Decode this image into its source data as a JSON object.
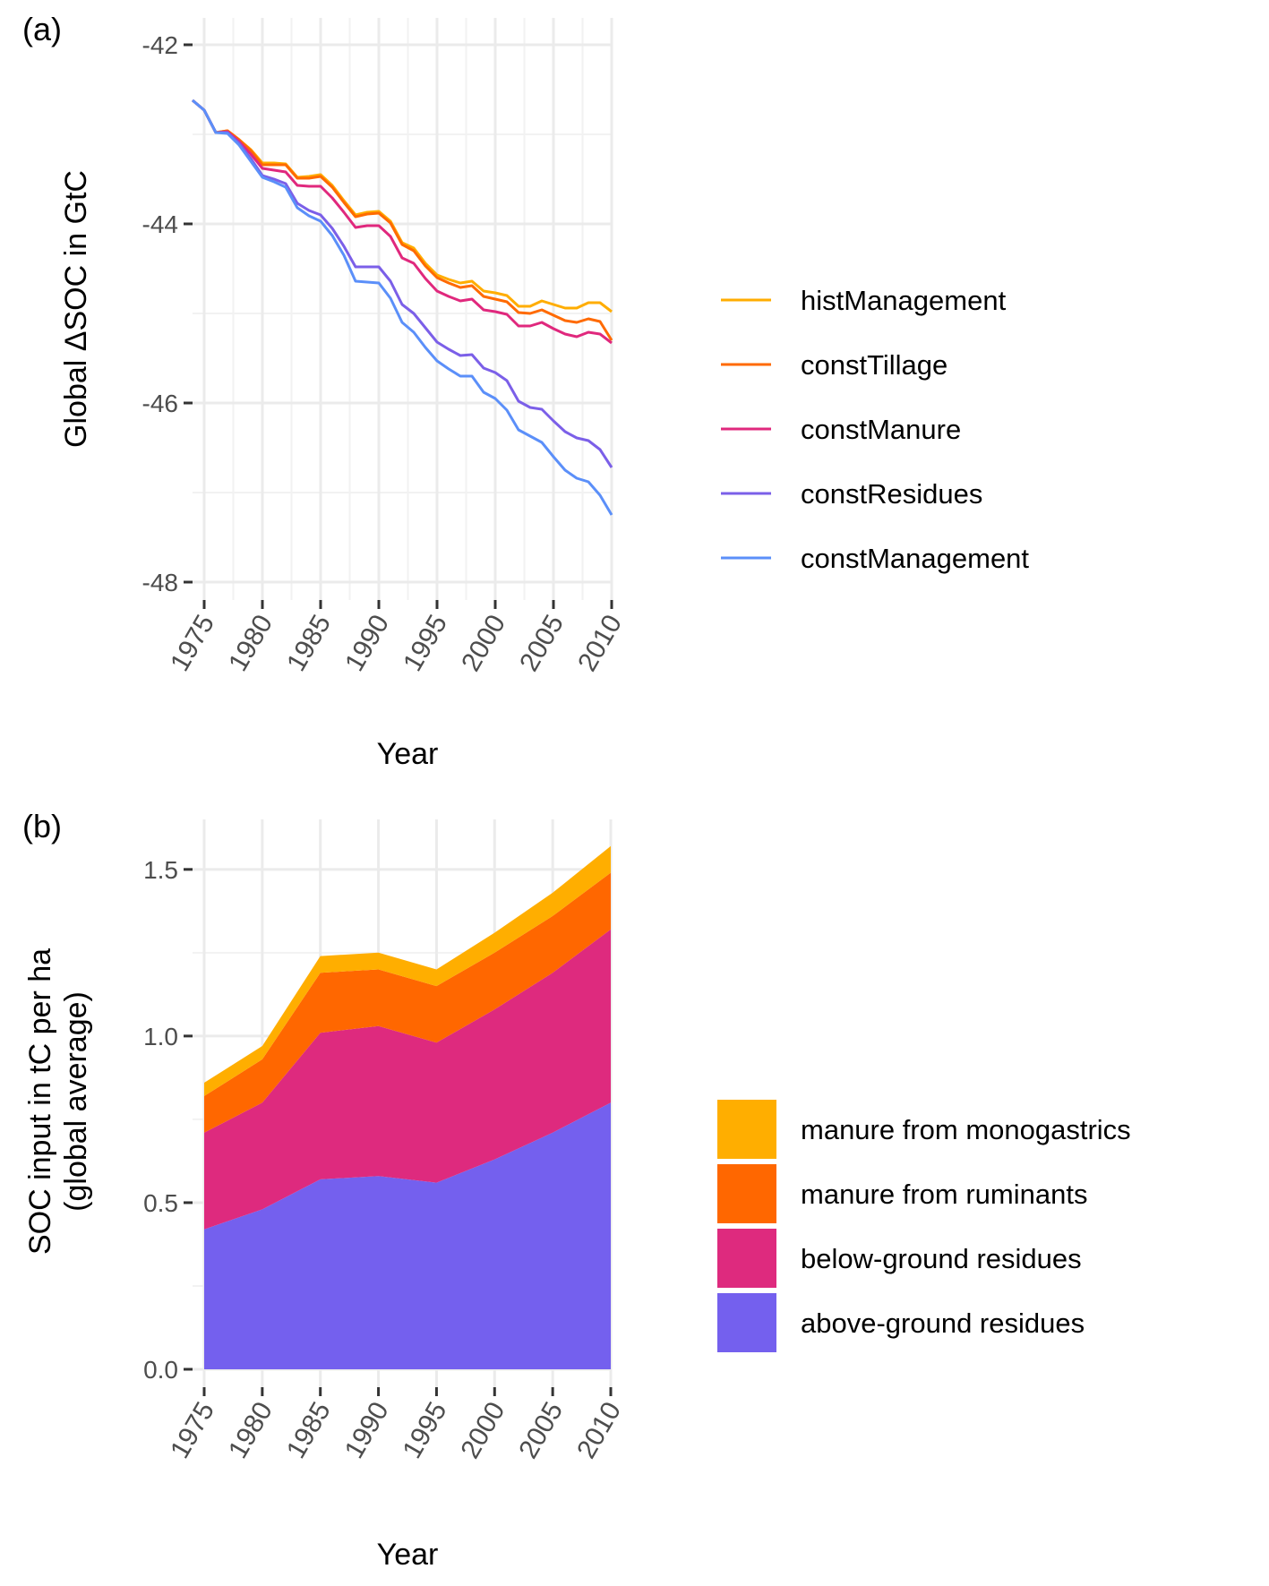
{
  "chart_data": [
    {
      "panel_label": "(a)",
      "type": "line",
      "xlabel": "Year",
      "ylabel": "Global ΔSOC in GtC",
      "xlim": [
        1974,
        2010
      ],
      "ylim": [
        -48.2,
        -41.7
      ],
      "x_ticks": [
        1975,
        1980,
        1985,
        1990,
        1995,
        2000,
        2005,
        2010
      ],
      "y_ticks": [
        -42,
        -44,
        -46,
        -48
      ],
      "grid": true,
      "legend_position": "right",
      "x": [
        1974,
        1975,
        1976,
        1977,
        1978,
        1979,
        1980,
        1981,
        1982,
        1983,
        1984,
        1985,
        1986,
        1987,
        1988,
        1989,
        1990,
        1991,
        1992,
        1993,
        1994,
        1995,
        1996,
        1997,
        1998,
        1999,
        2000,
        2001,
        2002,
        2003,
        2004,
        2005,
        2006,
        2007,
        2008,
        2009,
        2010
      ],
      "series": [
        {
          "name": "histManagement",
          "color": "#FFAD00",
          "values": [
            -42.62,
            -42.73,
            -42.98,
            -42.96,
            -43.06,
            -43.17,
            -43.32,
            -43.32,
            -43.33,
            -43.48,
            -43.47,
            -43.45,
            -43.57,
            -43.74,
            -43.9,
            -43.87,
            -43.86,
            -43.97,
            -44.21,
            -44.27,
            -44.44,
            -44.57,
            -44.62,
            -44.66,
            -44.64,
            -44.75,
            -44.77,
            -44.8,
            -44.92,
            -44.92,
            -44.86,
            -44.9,
            -44.94,
            -44.94,
            -44.88,
            -44.88,
            -44.98
          ]
        },
        {
          "name": "constTillage",
          "color": "#FF6A00",
          "values": [
            -42.62,
            -42.73,
            -42.98,
            -42.96,
            -43.06,
            -43.18,
            -43.34,
            -43.34,
            -43.34,
            -43.49,
            -43.49,
            -43.47,
            -43.59,
            -43.76,
            -43.92,
            -43.89,
            -43.88,
            -43.99,
            -44.23,
            -44.3,
            -44.47,
            -44.6,
            -44.66,
            -44.71,
            -44.69,
            -44.81,
            -44.84,
            -44.87,
            -44.99,
            -45.0,
            -44.96,
            -45.02,
            -45.08,
            -45.1,
            -45.06,
            -45.09,
            -45.3
          ]
        },
        {
          "name": "constManure",
          "color": "#E0287D",
          "values": [
            -42.62,
            -42.73,
            -42.98,
            -42.97,
            -43.08,
            -43.22,
            -43.38,
            -43.4,
            -43.42,
            -43.57,
            -43.58,
            -43.58,
            -43.71,
            -43.87,
            -44.04,
            -44.02,
            -44.02,
            -44.14,
            -44.38,
            -44.44,
            -44.61,
            -44.75,
            -44.81,
            -44.86,
            -44.84,
            -44.96,
            -44.98,
            -45.01,
            -45.14,
            -45.14,
            -45.1,
            -45.17,
            -45.23,
            -45.26,
            -45.21,
            -45.23,
            -45.33
          ]
        },
        {
          "name": "constResidues",
          "color": "#7B5FE8",
          "values": [
            -42.62,
            -42.73,
            -42.98,
            -42.98,
            -43.1,
            -43.27,
            -43.46,
            -43.5,
            -43.55,
            -43.77,
            -43.85,
            -43.9,
            -44.05,
            -44.25,
            -44.48,
            -44.48,
            -44.48,
            -44.64,
            -44.9,
            -45.0,
            -45.16,
            -45.32,
            -45.4,
            -45.47,
            -45.46,
            -45.61,
            -45.66,
            -45.75,
            -45.98,
            -46.05,
            -46.07,
            -46.2,
            -46.32,
            -46.39,
            -46.42,
            -46.52,
            -46.72
          ]
        },
        {
          "name": "constManagement",
          "color": "#5B8FF9",
          "values": [
            -42.62,
            -42.73,
            -42.98,
            -42.99,
            -43.12,
            -43.3,
            -43.48,
            -43.53,
            -43.59,
            -43.82,
            -43.91,
            -43.97,
            -44.13,
            -44.35,
            -44.64,
            -44.65,
            -44.66,
            -44.83,
            -45.1,
            -45.21,
            -45.38,
            -45.53,
            -45.62,
            -45.7,
            -45.7,
            -45.88,
            -45.95,
            -46.08,
            -46.3,
            -46.37,
            -46.44,
            -46.6,
            -46.75,
            -46.84,
            -46.88,
            -47.03,
            -47.25
          ]
        }
      ]
    },
    {
      "panel_label": "(b)",
      "type": "area",
      "stacked": true,
      "xlabel": "Year",
      "ylabel": [
        "SOC input in tC per ha",
        "(global average)"
      ],
      "xlim": [
        1975,
        2010
      ],
      "ylim": [
        0,
        1.65
      ],
      "x_ticks": [
        1975,
        1980,
        1985,
        1990,
        1995,
        2000,
        2005,
        2010
      ],
      "y_ticks": [
        0.0,
        0.5,
        1.0,
        1.5
      ],
      "y_tick_labels": [
        "0.0",
        "0.5",
        "1.0",
        "1.5"
      ],
      "grid": true,
      "legend_position": "right",
      "x": [
        1975,
        1980,
        1985,
        1990,
        1995,
        2000,
        2005,
        2010
      ],
      "series": [
        {
          "name": "above-ground residues",
          "color": "#7460EE",
          "values": [
            0.42,
            0.48,
            0.57,
            0.58,
            0.56,
            0.63,
            0.71,
            0.8
          ]
        },
        {
          "name": "below-ground residues",
          "color": "#DE2A7E",
          "values": [
            0.29,
            0.32,
            0.44,
            0.45,
            0.42,
            0.45,
            0.48,
            0.52
          ]
        },
        {
          "name": "manure from ruminants",
          "color": "#FF6700",
          "values": [
            0.11,
            0.13,
            0.18,
            0.17,
            0.17,
            0.17,
            0.17,
            0.17
          ]
        },
        {
          "name": "manure from monogastrics",
          "color": "#FFAE00",
          "values": [
            0.04,
            0.04,
            0.05,
            0.05,
            0.05,
            0.06,
            0.07,
            0.08
          ]
        }
      ]
    }
  ]
}
